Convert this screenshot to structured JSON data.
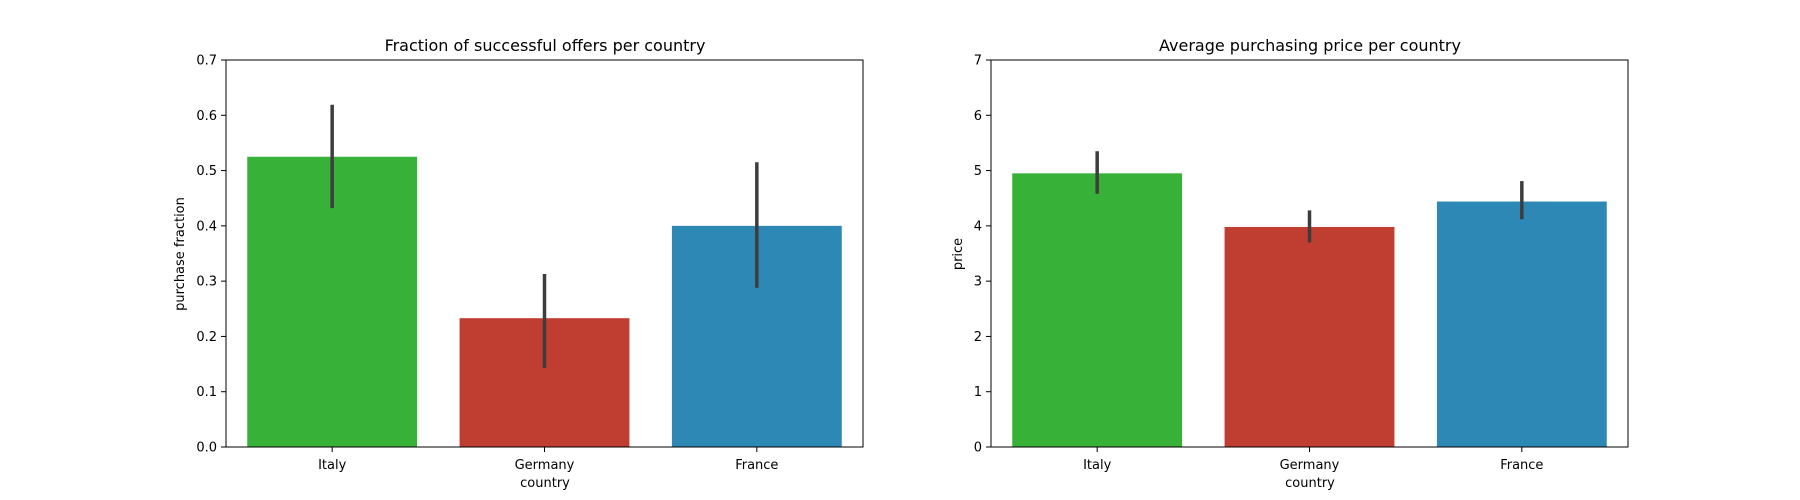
{
  "colors": {
    "Italy": "#38b139",
    "Germany": "#c03d31",
    "France": "#2d88b5",
    "errorbar": "#3d3d3d"
  },
  "chart_data": [
    {
      "type": "bar",
      "title": "Fraction of successful offers per country",
      "xlabel": "country",
      "ylabel": "purchase fraction",
      "categories": [
        "Italy",
        "Germany",
        "France"
      ],
      "values": [
        0.525,
        0.233,
        0.4
      ],
      "error_low": [
        0.432,
        0.143,
        0.288
      ],
      "error_high": [
        0.619,
        0.313,
        0.515
      ],
      "ylim": [
        0,
        0.7
      ],
      "yticks": [
        "0.0",
        "0.1",
        "0.2",
        "0.3",
        "0.4",
        "0.5",
        "0.6",
        "0.7"
      ],
      "grid": false,
      "legend": "none"
    },
    {
      "type": "bar",
      "title": "Average purchasing price per country",
      "xlabel": "country",
      "ylabel": "price",
      "categories": [
        "Italy",
        "Germany",
        "France"
      ],
      "values": [
        4.95,
        3.98,
        4.44
      ],
      "error_low": [
        4.58,
        3.7,
        4.12
      ],
      "error_high": [
        5.35,
        4.28,
        4.81
      ],
      "ylim": [
        0,
        7
      ],
      "yticks": [
        "0",
        "1",
        "2",
        "3",
        "4",
        "5",
        "6",
        "7"
      ],
      "grid": false,
      "legend": "none"
    }
  ]
}
